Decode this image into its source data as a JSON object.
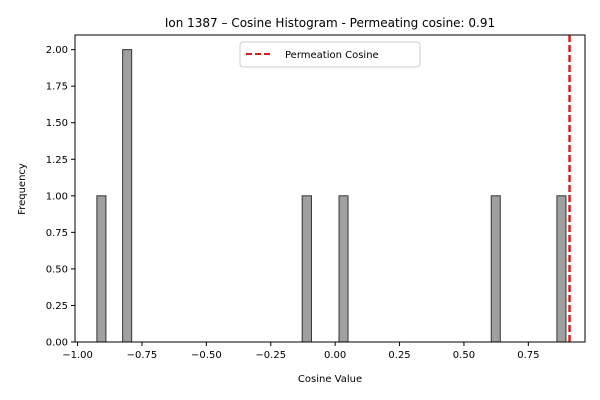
{
  "chart_data": {
    "type": "bar",
    "title": "Ion 1387 – Cosine Histogram - Permeating cosine: 0.91",
    "xlabel": "Cosine Value",
    "ylabel": "Frequency",
    "xlim": [
      -1.01,
      0.97
    ],
    "ylim": [
      0,
      2.1
    ],
    "xticks": [
      -1.0,
      -0.75,
      -0.5,
      -0.25,
      0.0,
      0.25,
      0.5,
      0.75
    ],
    "xtick_labels": [
      "−1.00",
      "−0.75",
      "−0.50",
      "−0.25",
      "0.00",
      "0.25",
      "0.50",
      "0.75"
    ],
    "yticks": [
      0,
      0.25,
      0.5,
      0.75,
      1.0,
      1.25,
      1.5,
      1.75,
      2.0
    ],
    "ytick_labels": [
      "0.00",
      "0.25",
      "0.50",
      "0.75",
      "1.00",
      "1.25",
      "1.50",
      "1.75",
      "2.00"
    ],
    "bars": [
      {
        "x0": -0.925,
        "x1": -0.89,
        "count": 1
      },
      {
        "x0": -0.825,
        "x1": -0.79,
        "count": 2
      },
      {
        "x0": -0.128,
        "x1": -0.092,
        "count": 1
      },
      {
        "x0": 0.015,
        "x1": 0.05,
        "count": 1
      },
      {
        "x0": 0.606,
        "x1": 0.641,
        "count": 1
      },
      {
        "x0": 0.861,
        "x1": 0.896,
        "count": 1
      }
    ],
    "bar_color": "#a0a0a0",
    "bar_edge_color": "#333333",
    "reference_line": {
      "x": 0.91,
      "color": "#d62020",
      "style": "dashed"
    },
    "legend": {
      "label": "Permeation Cosine",
      "placement": "top-center"
    },
    "grid": false
  }
}
